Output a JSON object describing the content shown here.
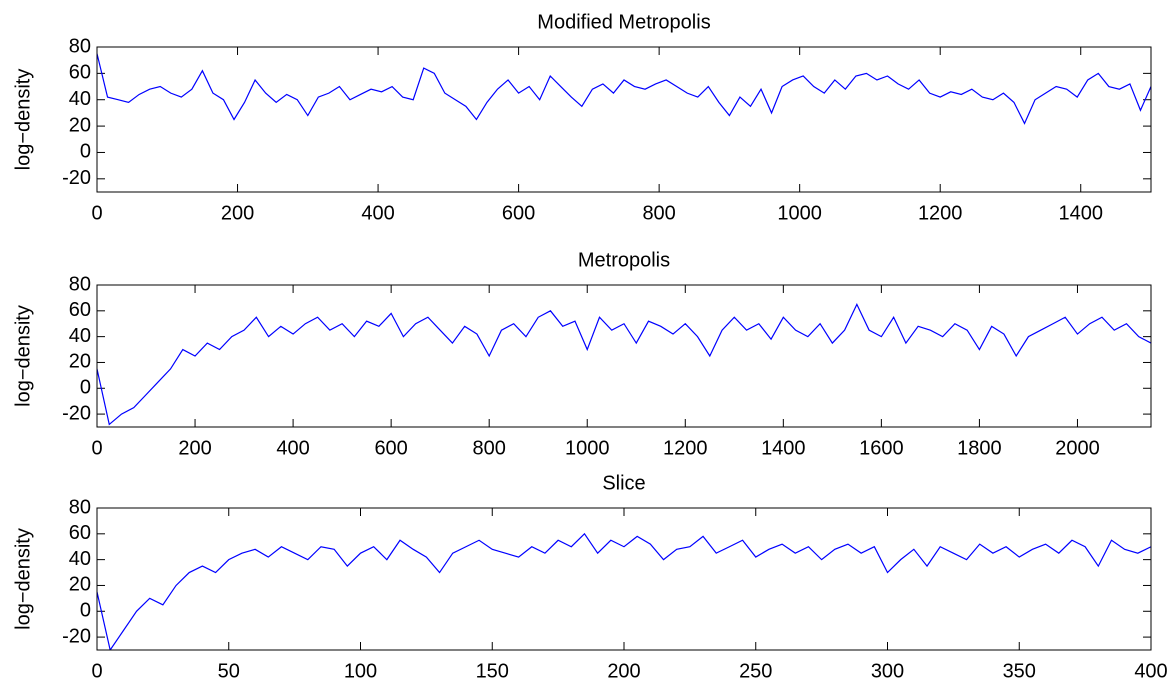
{
  "chart_data": [
    {
      "type": "line",
      "title": "Modified Metropolis",
      "ylabel": "log−density",
      "color": "#0000ff",
      "x": [
        0,
        15,
        30,
        45,
        60,
        75,
        90,
        105,
        120,
        135,
        150,
        165,
        180,
        195,
        210,
        225,
        240,
        255,
        270,
        285,
        300,
        315,
        330,
        345,
        360,
        375,
        390,
        405,
        420,
        435,
        450,
        465,
        480,
        495,
        510,
        525,
        540,
        555,
        570,
        585,
        600,
        615,
        630,
        645,
        660,
        675,
        690,
        705,
        720,
        735,
        750,
        765,
        780,
        795,
        810,
        825,
        840,
        855,
        870,
        885,
        900,
        915,
        930,
        945,
        960,
        975,
        990,
        1005,
        1020,
        1035,
        1050,
        1065,
        1080,
        1095,
        1110,
        1125,
        1140,
        1155,
        1170,
        1185,
        1200,
        1215,
        1230,
        1245,
        1260,
        1275,
        1290,
        1305,
        1320,
        1335,
        1350,
        1365,
        1380,
        1395,
        1410,
        1425,
        1440,
        1455,
        1470,
        1485,
        1500
      ],
      "values": [
        75,
        42,
        40,
        38,
        44,
        48,
        50,
        45,
        42,
        48,
        62,
        45,
        40,
        25,
        38,
        55,
        45,
        38,
        44,
        40,
        28,
        42,
        45,
        50,
        40,
        44,
        48,
        46,
        50,
        42,
        40,
        64,
        60,
        45,
        40,
        35,
        25,
        38,
        48,
        55,
        45,
        50,
        40,
        58,
        50,
        42,
        35,
        48,
        52,
        45,
        55,
        50,
        48,
        52,
        55,
        50,
        45,
        42,
        50,
        38,
        28,
        42,
        35,
        48,
        30,
        50,
        55,
        58,
        50,
        45,
        55,
        48,
        58,
        60,
        55,
        58,
        52,
        48,
        55,
        45,
        42,
        46,
        44,
        48,
        42,
        40,
        45,
        38,
        22,
        40,
        45,
        50,
        48,
        42,
        55,
        60,
        50,
        48,
        52,
        32,
        50
      ],
      "xlim": [
        0,
        1500
      ],
      "xticks": [
        0,
        200,
        400,
        600,
        800,
        1000,
        1200,
        1400
      ],
      "ylim": [
        -30,
        80
      ],
      "yticks": [
        -20,
        0,
        20,
        40,
        60,
        80
      ]
    },
    {
      "type": "line",
      "title": "Metropolis",
      "ylabel": "log−density",
      "color": "#0000ff",
      "x": [
        0,
        25,
        50,
        75,
        100,
        125,
        150,
        175,
        200,
        225,
        250,
        275,
        300,
        325,
        350,
        375,
        400,
        425,
        450,
        475,
        500,
        525,
        550,
        575,
        600,
        625,
        650,
        675,
        700,
        725,
        750,
        775,
        800,
        825,
        850,
        875,
        900,
        925,
        950,
        975,
        1000,
        1025,
        1050,
        1075,
        1100,
        1125,
        1150,
        1175,
        1200,
        1225,
        1250,
        1275,
        1300,
        1325,
        1350,
        1375,
        1400,
        1425,
        1450,
        1475,
        1500,
        1525,
        1550,
        1575,
        1600,
        1625,
        1650,
        1675,
        1700,
        1725,
        1750,
        1775,
        1800,
        1825,
        1850,
        1875,
        1900,
        1925,
        1950,
        1975,
        2000,
        2025,
        2050,
        2075,
        2100,
        2125,
        2150
      ],
      "values": [
        15,
        -28,
        -20,
        -15,
        -5,
        5,
        15,
        30,
        25,
        35,
        30,
        40,
        45,
        55,
        40,
        48,
        42,
        50,
        55,
        45,
        50,
        40,
        52,
        48,
        58,
        40,
        50,
        55,
        45,
        35,
        48,
        42,
        25,
        45,
        50,
        40,
        55,
        60,
        48,
        52,
        30,
        55,
        45,
        50,
        35,
        52,
        48,
        42,
        50,
        40,
        25,
        45,
        55,
        45,
        50,
        38,
        55,
        45,
        40,
        50,
        35,
        45,
        65,
        45,
        40,
        55,
        35,
        48,
        45,
        40,
        50,
        45,
        30,
        48,
        42,
        25,
        40,
        45,
        50,
        55,
        42,
        50,
        55,
        45,
        50,
        40,
        35
      ],
      "xlim": [
        0,
        2150
      ],
      "xticks": [
        0,
        200,
        400,
        600,
        800,
        1000,
        1200,
        1400,
        1600,
        1800,
        2000
      ],
      "ylim": [
        -30,
        80
      ],
      "yticks": [
        -20,
        0,
        20,
        40,
        60,
        80
      ]
    },
    {
      "type": "line",
      "title": "Slice",
      "ylabel": "log−density",
      "color": "#0000ff",
      "x": [
        0,
        5,
        10,
        15,
        20,
        25,
        30,
        35,
        40,
        45,
        50,
        55,
        60,
        65,
        70,
        75,
        80,
        85,
        90,
        95,
        100,
        105,
        110,
        115,
        120,
        125,
        130,
        135,
        140,
        145,
        150,
        155,
        160,
        165,
        170,
        175,
        180,
        185,
        190,
        195,
        200,
        205,
        210,
        215,
        220,
        225,
        230,
        235,
        240,
        245,
        250,
        255,
        260,
        265,
        270,
        275,
        280,
        285,
        290,
        295,
        300,
        305,
        310,
        315,
        320,
        325,
        330,
        335,
        340,
        345,
        350,
        355,
        360,
        365,
        370,
        375,
        380,
        385,
        390,
        395,
        400
      ],
      "values": [
        15,
        -30,
        -15,
        0,
        10,
        5,
        20,
        30,
        35,
        30,
        40,
        45,
        48,
        42,
        50,
        45,
        40,
        50,
        48,
        35,
        45,
        50,
        40,
        55,
        48,
        42,
        30,
        45,
        50,
        55,
        48,
        45,
        42,
        50,
        45,
        55,
        50,
        60,
        45,
        55,
        50,
        58,
        52,
        40,
        48,
        50,
        58,
        45,
        50,
        55,
        42,
        48,
        52,
        45,
        50,
        40,
        48,
        52,
        45,
        50,
        30,
        40,
        48,
        35,
        50,
        45,
        40,
        52,
        45,
        50,
        42,
        48,
        52,
        45,
        55,
        50,
        35,
        55,
        48,
        45,
        50
      ],
      "xlim": [
        0,
        400
      ],
      "xticks": [
        0,
        50,
        100,
        150,
        200,
        250,
        300,
        350,
        400
      ],
      "ylim": [
        -30,
        80
      ],
      "yticks": [
        -20,
        0,
        20,
        40,
        60,
        80
      ]
    }
  ]
}
